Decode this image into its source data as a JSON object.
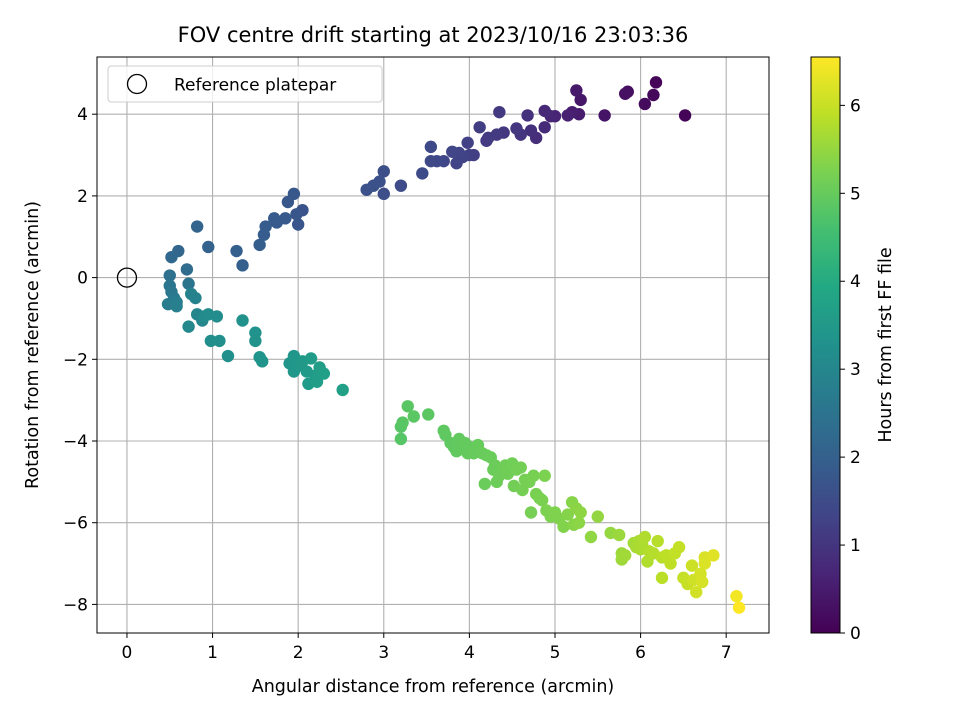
{
  "chart_data": {
    "type": "scatter",
    "title": "FOV centre drift starting at 2023/10/16 23:03:36",
    "xlabel": "Angular distance from reference (arcmin)",
    "ylabel": "Rotation from reference (arcmin)",
    "xlim": [
      -0.35,
      7.5
    ],
    "ylim": [
      -8.7,
      5.4
    ],
    "xticks": [
      0,
      1,
      2,
      3,
      4,
      5,
      6,
      7
    ],
    "yticks": [
      -8,
      -6,
      -4,
      -2,
      0,
      2,
      4
    ],
    "grid": true,
    "legend": {
      "placement": "top-left",
      "entries": [
        "Reference platepar"
      ]
    },
    "reference_point": {
      "x": 0,
      "y": 0,
      "label": "Reference platepar"
    },
    "colorbar": {
      "label": "Hours from first FF file",
      "range": [
        0,
        6.55
      ],
      "ticks": [
        0,
        1,
        2,
        3,
        4,
        5,
        6
      ],
      "colormap": "viridis"
    },
    "points": [
      [
        6.52,
        3.97,
        0.05
      ],
      [
        6.18,
        4.78,
        0.1
      ],
      [
        6.15,
        4.47,
        0.15
      ],
      [
        6.05,
        4.25,
        0.2
      ],
      [
        5.85,
        4.55,
        0.25
      ],
      [
        5.82,
        4.5,
        0.3
      ],
      [
        5.58,
        3.97,
        0.35
      ],
      [
        5.3,
        4.35,
        0.4
      ],
      [
        5.25,
        4.58,
        0.45
      ],
      [
        5.28,
        4.0,
        0.5
      ],
      [
        5.2,
        4.05,
        0.55
      ],
      [
        5.15,
        3.97,
        0.6
      ],
      [
        5.0,
        3.95,
        0.65
      ],
      [
        4.95,
        3.95,
        0.7
      ],
      [
        4.88,
        4.08,
        0.75
      ],
      [
        4.88,
        3.68,
        0.8
      ],
      [
        4.78,
        3.42,
        0.85
      ],
      [
        4.72,
        3.6,
        0.9
      ],
      [
        4.68,
        3.97,
        0.95
      ],
      [
        4.6,
        3.5,
        1.0
      ],
      [
        4.55,
        3.65,
        1.02
      ],
      [
        4.4,
        3.55,
        1.05
      ],
      [
        4.35,
        4.05,
        1.08
      ],
      [
        4.32,
        3.5,
        1.1
      ],
      [
        4.22,
        3.42,
        1.12
      ],
      [
        4.2,
        3.35,
        1.15
      ],
      [
        4.12,
        3.68,
        1.18
      ],
      [
        4.05,
        3.0,
        1.2
      ],
      [
        4.0,
        3.0,
        1.22
      ],
      [
        3.98,
        3.3,
        1.25
      ],
      [
        3.92,
        2.95,
        1.28
      ],
      [
        3.88,
        3.05,
        1.3
      ],
      [
        3.85,
        2.8,
        1.32
      ],
      [
        3.8,
        3.08,
        1.35
      ],
      [
        3.7,
        2.85,
        1.38
      ],
      [
        3.62,
        2.85,
        1.4
      ],
      [
        3.55,
        2.85,
        1.42
      ],
      [
        3.55,
        3.2,
        1.45
      ],
      [
        3.45,
        2.55,
        1.48
      ],
      [
        3.2,
        2.25,
        1.5
      ],
      [
        3.0,
        2.05,
        1.55
      ],
      [
        3.0,
        2.6,
        1.58
      ],
      [
        2.95,
        2.35,
        1.6
      ],
      [
        2.88,
        2.25,
        1.62
      ],
      [
        2.8,
        2.15,
        1.65
      ],
      [
        2.05,
        1.65,
        1.7
      ],
      [
        2.0,
        1.3,
        1.72
      ],
      [
        1.98,
        1.55,
        1.75
      ],
      [
        1.95,
        2.05,
        1.78
      ],
      [
        1.88,
        1.85,
        1.8
      ],
      [
        1.85,
        1.45,
        1.82
      ],
      [
        1.75,
        1.35,
        1.85
      ],
      [
        1.72,
        1.45,
        1.88
      ],
      [
        1.62,
        1.25,
        1.9
      ],
      [
        1.6,
        1.05,
        1.92
      ],
      [
        1.55,
        0.8,
        1.95
      ],
      [
        1.35,
        0.3,
        1.98
      ],
      [
        1.28,
        0.65,
        2.0
      ],
      [
        0.95,
        0.75,
        2.05
      ],
      [
        0.82,
        1.25,
        2.1
      ],
      [
        0.6,
        0.65,
        2.15
      ],
      [
        0.52,
        0.5,
        2.2
      ],
      [
        0.7,
        0.2,
        2.3
      ],
      [
        0.5,
        0.05,
        2.4
      ],
      [
        0.72,
        -0.15,
        2.5
      ],
      [
        0.5,
        -0.2,
        2.55
      ],
      [
        0.52,
        -0.35,
        2.6
      ],
      [
        0.55,
        -0.5,
        2.65
      ],
      [
        0.48,
        -0.65,
        2.7
      ],
      [
        0.58,
        -0.6,
        2.75
      ],
      [
        0.58,
        -0.7,
        2.8
      ],
      [
        0.75,
        -0.4,
        2.85
      ],
      [
        0.8,
        -0.5,
        2.9
      ],
      [
        0.82,
        -0.9,
        2.95
      ],
      [
        0.88,
        -1.05,
        3.0
      ],
      [
        0.72,
        -1.2,
        3.05
      ],
      [
        0.9,
        -0.95,
        3.1
      ],
      [
        0.95,
        -0.9,
        3.15
      ],
      [
        1.05,
        -0.95,
        3.18
      ],
      [
        0.98,
        -1.55,
        3.2
      ],
      [
        1.08,
        -1.55,
        3.22
      ],
      [
        1.18,
        -1.92,
        3.25
      ],
      [
        1.35,
        -1.05,
        3.28
      ],
      [
        1.5,
        -1.35,
        3.3
      ],
      [
        1.5,
        -1.55,
        3.32
      ],
      [
        1.55,
        -1.95,
        3.35
      ],
      [
        1.58,
        -2.05,
        3.38
      ],
      [
        1.9,
        -2.1,
        3.4
      ],
      [
        1.95,
        -1.92,
        3.42
      ],
      [
        1.95,
        -2.3,
        3.45
      ],
      [
        2.02,
        -2.15,
        3.48
      ],
      [
        2.05,
        -2.05,
        3.5
      ],
      [
        2.1,
        -2.3,
        3.52
      ],
      [
        2.12,
        -2.6,
        3.55
      ],
      [
        2.15,
        -1.98,
        3.58
      ],
      [
        2.2,
        -2.4,
        3.6
      ],
      [
        2.22,
        -2.55,
        3.62
      ],
      [
        2.25,
        -2.2,
        3.65
      ],
      [
        2.3,
        -2.35,
        3.68
      ],
      [
        2.52,
        -2.75,
        3.7
      ],
      [
        3.2,
        -3.95,
        4.8
      ],
      [
        3.2,
        -3.65,
        4.82
      ],
      [
        3.22,
        -3.55,
        4.84
      ],
      [
        3.28,
        -3.15,
        4.85
      ],
      [
        3.35,
        -3.4,
        4.86
      ],
      [
        3.52,
        -3.35,
        4.88
      ],
      [
        3.7,
        -3.75,
        4.9
      ],
      [
        3.72,
        -3.85,
        4.91
      ],
      [
        3.78,
        -4.05,
        4.92
      ],
      [
        3.82,
        -4.15,
        4.93
      ],
      [
        3.85,
        -4.25,
        4.94
      ],
      [
        3.88,
        -3.95,
        4.95
      ],
      [
        3.9,
        -4.2,
        4.96
      ],
      [
        3.95,
        -4.05,
        4.97
      ],
      [
        3.98,
        -4.3,
        4.98
      ],
      [
        4.0,
        -4.15,
        4.99
      ],
      [
        4.05,
        -4.3,
        5.0
      ],
      [
        4.1,
        -4.1,
        5.01
      ],
      [
        4.15,
        -4.3,
        5.02
      ],
      [
        4.2,
        -4.35,
        5.03
      ],
      [
        4.25,
        -4.4,
        5.04
      ],
      [
        4.18,
        -5.05,
        5.05
      ],
      [
        4.28,
        -4.7,
        5.06
      ],
      [
        4.3,
        -4.6,
        5.07
      ],
      [
        4.32,
        -5.0,
        5.08
      ],
      [
        4.35,
        -4.85,
        5.09
      ],
      [
        4.4,
        -4.75,
        5.1
      ],
      [
        4.42,
        -4.6,
        5.11
      ],
      [
        4.45,
        -4.8,
        5.12
      ],
      [
        4.5,
        -4.55,
        5.13
      ],
      [
        4.52,
        -5.1,
        5.14
      ],
      [
        4.55,
        -4.7,
        5.15
      ],
      [
        4.6,
        -4.65,
        5.16
      ],
      [
        4.62,
        -5.2,
        5.17
      ],
      [
        4.65,
        -4.95,
        5.18
      ],
      [
        4.7,
        -5.0,
        5.19
      ],
      [
        4.72,
        -5.75,
        5.2
      ],
      [
        4.75,
        -4.85,
        5.21
      ],
      [
        4.78,
        -5.3,
        5.22
      ],
      [
        4.82,
        -5.4,
        5.23
      ],
      [
        4.85,
        -5.45,
        5.24
      ],
      [
        4.88,
        -4.85,
        5.25
      ],
      [
        4.9,
        -5.7,
        5.26
      ],
      [
        4.95,
        -5.85,
        5.27
      ],
      [
        5.0,
        -5.75,
        5.28
      ],
      [
        5.05,
        -5.9,
        5.3
      ],
      [
        5.1,
        -6.1,
        5.32
      ],
      [
        5.15,
        -5.8,
        5.34
      ],
      [
        5.2,
        -5.5,
        5.36
      ],
      [
        5.22,
        -6.05,
        5.38
      ],
      [
        5.25,
        -5.65,
        5.4
      ],
      [
        5.28,
        -6.0,
        5.42
      ],
      [
        5.3,
        -5.75,
        5.44
      ],
      [
        5.42,
        -6.35,
        5.46
      ],
      [
        5.5,
        -5.85,
        5.48
      ],
      [
        5.65,
        -6.25,
        5.5
      ],
      [
        5.75,
        -6.3,
        5.55
      ],
      [
        5.78,
        -6.75,
        5.58
      ],
      [
        5.78,
        -6.9,
        5.6
      ],
      [
        5.82,
        -6.8,
        5.62
      ],
      [
        5.92,
        -6.5,
        5.65
      ],
      [
        5.95,
        -6.6,
        5.68
      ],
      [
        5.98,
        -6.45,
        5.7
      ],
      [
        6.0,
        -6.65,
        5.72
      ],
      [
        6.02,
        -6.55,
        5.74
      ],
      [
        6.05,
        -6.35,
        5.76
      ],
      [
        6.08,
        -6.95,
        5.78
      ],
      [
        6.1,
        -6.7,
        5.8
      ],
      [
        6.15,
        -6.75,
        5.82
      ],
      [
        6.2,
        -6.45,
        5.84
      ],
      [
        6.25,
        -6.85,
        5.86
      ],
      [
        6.25,
        -7.35,
        5.88
      ],
      [
        6.3,
        -6.8,
        5.9
      ],
      [
        6.35,
        -7.0,
        5.92
      ],
      [
        6.4,
        -6.75,
        5.94
      ],
      [
        6.45,
        -6.6,
        5.96
      ],
      [
        6.5,
        -7.35,
        5.98
      ],
      [
        6.55,
        -7.5,
        6.0
      ],
      [
        6.6,
        -7.05,
        6.05
      ],
      [
        6.62,
        -7.4,
        6.08
      ],
      [
        6.65,
        -7.7,
        6.1
      ],
      [
        6.7,
        -7.25,
        6.12
      ],
      [
        6.72,
        -7.45,
        6.15
      ],
      [
        6.75,
        -6.85,
        6.18
      ],
      [
        6.75,
        -7.0,
        6.2
      ],
      [
        6.85,
        -6.8,
        6.25
      ],
      [
        7.12,
        -7.8,
        6.45
      ],
      [
        7.15,
        -8.08,
        6.55
      ]
    ]
  }
}
